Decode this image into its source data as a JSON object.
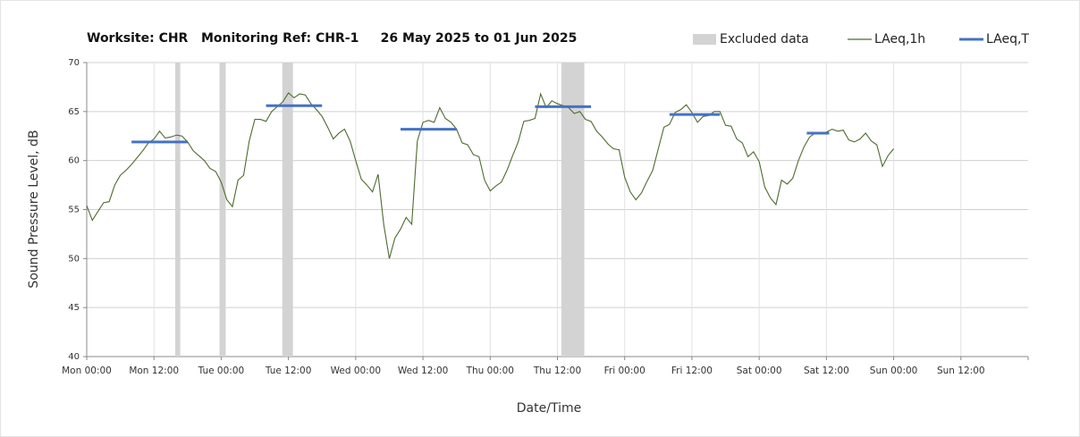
{
  "chart_data": {
    "type": "line",
    "title": "Worksite: CHR   Monitoring Ref: CHR-1     26 May 2025 to 01 Jun 2025",
    "x_label": "Date/Time",
    "y_label": "Sound Pressure Level, dB",
    "xlim": [
      0,
      168
    ],
    "xticks": [
      {
        "value": 0,
        "label": "Mon 00:00"
      },
      {
        "value": 12,
        "label": "Mon 12:00"
      },
      {
        "value": 24,
        "label": "Tue 00:00"
      },
      {
        "value": 36,
        "label": "Tue 12:00"
      },
      {
        "value": 48,
        "label": "Wed 00:00"
      },
      {
        "value": 60,
        "label": "Wed 12:00"
      },
      {
        "value": 72,
        "label": "Thu 00:00"
      },
      {
        "value": 84,
        "label": "Thu 12:00"
      },
      {
        "value": 96,
        "label": "Fri 00:00"
      },
      {
        "value": 108,
        "label": "Fri 12:00"
      },
      {
        "value": 120,
        "label": "Sat 00:00"
      },
      {
        "value": 132,
        "label": "Sat 12:00"
      },
      {
        "value": 144,
        "label": "Sun 00:00"
      },
      {
        "value": 156,
        "label": "Sun 12:00"
      }
    ],
    "ylim": [
      40,
      70
    ],
    "yticks": [
      40,
      45,
      50,
      55,
      60,
      65,
      70
    ],
    "grid": true,
    "legend": "top-right",
    "series": [
      {
        "name": "Excluded data",
        "color": "#d3d3d3",
        "ranges": [
          [
            15.8,
            16.7
          ],
          [
            23.7,
            24.8
          ],
          [
            34.9,
            36.8
          ],
          [
            84.7,
            88.8
          ]
        ]
      },
      {
        "name": "LAeq,1h",
        "color": "#4f6b2f",
        "x": [
          0,
          1,
          2,
          3,
          4,
          5,
          6,
          7,
          8,
          9,
          10,
          11,
          12,
          13,
          14,
          15,
          16,
          17,
          18,
          19,
          20,
          21,
          22,
          23,
          24,
          25,
          26,
          27,
          28,
          29,
          30,
          31,
          32,
          33,
          34,
          35,
          36,
          37,
          38,
          39,
          40,
          41,
          42,
          43,
          44,
          45,
          46,
          47,
          48,
          49,
          50,
          51,
          52,
          53,
          54,
          55,
          56,
          57,
          58,
          59,
          60,
          61,
          62,
          63,
          64,
          65,
          66,
          67,
          68,
          69,
          70,
          71,
          72,
          73,
          74,
          75,
          76,
          77,
          78,
          79,
          80,
          81,
          82,
          83,
          84,
          85,
          86,
          87,
          88,
          89,
          90,
          91,
          92,
          93,
          94,
          95,
          96,
          97,
          98,
          99,
          100,
          101,
          102,
          103,
          104,
          105,
          106,
          107,
          108,
          109,
          110,
          111,
          112,
          113,
          114,
          115,
          116,
          117,
          118,
          119,
          120,
          121,
          122,
          123,
          124,
          125,
          126,
          127,
          128,
          129,
          130,
          131,
          132,
          133,
          134,
          135,
          136,
          137,
          138,
          139,
          140,
          141,
          142,
          143,
          144
        ],
        "values": [
          55.4,
          53.9,
          54.8,
          55.7,
          55.8,
          57.5,
          58.5,
          59.0,
          59.6,
          60.3,
          61.0,
          61.8,
          62.2,
          63.0,
          62.3,
          62.4,
          62.6,
          62.5,
          61.9,
          61.0,
          60.5,
          60.0,
          59.2,
          58.9,
          57.8,
          56.0,
          55.3,
          58.0,
          58.5,
          62.0,
          64.2,
          64.2,
          64.0,
          65.0,
          65.5,
          66.0,
          66.9,
          66.4,
          66.8,
          66.7,
          65.8,
          65.2,
          64.5,
          63.4,
          62.2,
          62.8,
          63.2,
          62.0,
          60.0,
          58.1,
          57.5,
          56.8,
          58.6,
          53.5,
          50.0,
          52.1,
          53.0,
          54.2,
          53.5,
          62.0,
          63.9,
          64.1,
          63.9,
          65.4,
          64.3,
          63.9,
          63.2,
          61.8,
          61.6,
          60.6,
          60.4,
          58.0,
          56.9,
          57.4,
          57.8,
          59.0,
          60.5,
          61.9,
          64.0,
          64.1,
          64.3,
          66.8,
          65.4,
          66.1,
          65.8,
          65.6,
          65.4,
          64.8,
          65.0,
          64.2,
          64.0,
          63.0,
          62.4,
          61.7,
          61.2,
          61.1,
          58.3,
          56.8,
          56.0,
          56.7,
          57.9,
          59.0,
          61.2,
          63.4,
          63.7,
          64.9,
          65.2,
          65.7,
          64.9,
          63.9,
          64.5,
          64.6,
          65.0,
          65.0,
          63.6,
          63.5,
          62.2,
          61.8,
          60.4,
          60.9,
          59.9,
          57.3,
          56.2,
          55.5,
          58.0,
          57.6,
          58.2,
          60.0,
          61.4,
          62.4,
          62.8,
          62.7,
          62.9,
          63.2,
          63.0,
          63.1,
          62.1,
          61.9,
          62.2,
          62.8,
          62.0,
          61.6,
          59.4,
          60.5,
          61.2
        ]
      },
      {
        "name": "LAeq,T",
        "color": "#4472c4",
        "segments": [
          [
            8,
            18,
            61.9
          ],
          [
            32,
            42,
            65.6
          ],
          [
            56,
            66,
            63.2
          ],
          [
            80,
            90,
            65.5
          ],
          [
            104,
            113,
            64.7
          ],
          [
            128.5,
            132.5,
            62.8
          ]
        ]
      }
    ]
  }
}
